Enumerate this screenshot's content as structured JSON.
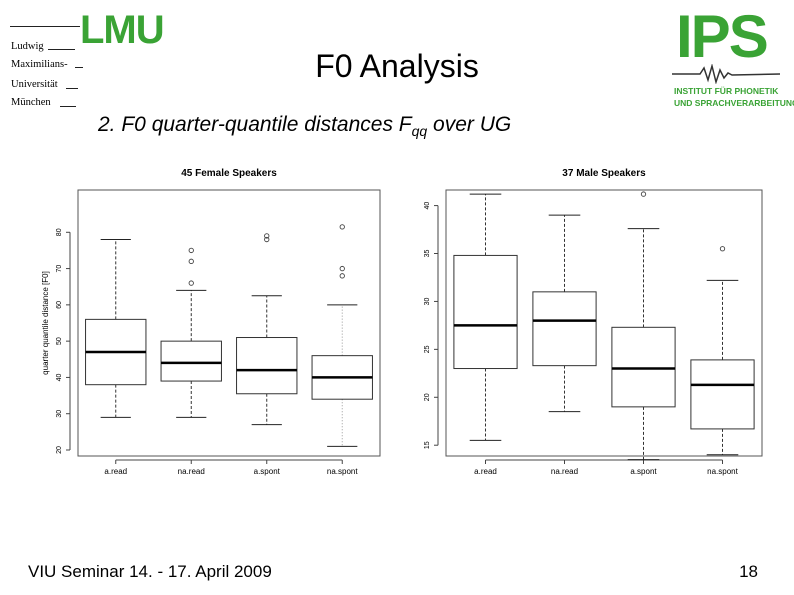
{
  "logo_lmu": {
    "mark": "LMU",
    "lines": [
      "Ludwig",
      "Maximilians-",
      "Universität",
      "München"
    ]
  },
  "logo_ips": {
    "mark": "IPS",
    "line1": "INSTITUT FÜR PHONETIK",
    "line2": "UND SPRACHVERARBEITUNG"
  },
  "slide": {
    "title": "F0 Analysis",
    "subtitle_main": "2. F0 quarter-quantile distances F",
    "subtitle_sub": "qq",
    "subtitle_tail": " over UG",
    "footer": "VIU Seminar 14. - 17. April 2009",
    "page_number": "18"
  },
  "chart_data": [
    {
      "type": "boxplot",
      "title": "45 Female Speakers",
      "ylabel": "quarter quantile distance [F0]",
      "xlabel": "",
      "ylim": [
        20,
        90
      ],
      "yticks": [
        20,
        30,
        40,
        50,
        60,
        70,
        80
      ],
      "grid": false,
      "categories": [
        "a.read",
        "na.read",
        "a.spont",
        "na.spont"
      ],
      "boxes": [
        {
          "whisker_low": 29,
          "q1": 38,
          "median": 47,
          "q3": 56,
          "whisker_high": 78,
          "outliers": [],
          "whisker_style": "dashed"
        },
        {
          "whisker_low": 29,
          "q1": 39,
          "median": 44,
          "q3": 50,
          "whisker_high": 64,
          "outliers": [
            66,
            72,
            75
          ],
          "whisker_style": "dashed"
        },
        {
          "whisker_low": 27,
          "q1": 35.5,
          "median": 42,
          "q3": 51,
          "whisker_high": 62.5,
          "outliers": [
            78,
            79
          ],
          "whisker_style": "dashed"
        },
        {
          "whisker_low": 21,
          "q1": 34,
          "median": 40,
          "q3": 46,
          "whisker_high": 60,
          "outliers": [
            68,
            70,
            81.5
          ],
          "whisker_style": "dotted"
        }
      ]
    },
    {
      "type": "boxplot",
      "title": "37 Male Speakers",
      "ylabel": "",
      "xlabel": "",
      "ylim": [
        14.5,
        41
      ],
      "yticks": [
        15,
        20,
        25,
        30,
        35,
        40
      ],
      "grid": false,
      "categories": [
        "a.read",
        "na.read",
        "a.spont",
        "na.spont"
      ],
      "boxes": [
        {
          "whisker_low": 15.5,
          "q1": 23,
          "median": 27.5,
          "q3": 34.8,
          "whisker_high": 41.2,
          "outliers": [],
          "whisker_style": "dashed"
        },
        {
          "whisker_low": 18.5,
          "q1": 23.3,
          "median": 28,
          "q3": 31,
          "whisker_high": 39,
          "outliers": [],
          "whisker_style": "dashed"
        },
        {
          "whisker_low": 13.5,
          "q1": 19,
          "median": 23,
          "q3": 27.3,
          "whisker_high": 37.6,
          "outliers": [
            41.2
          ],
          "whisker_style": "dashed"
        },
        {
          "whisker_low": 14,
          "q1": 16.7,
          "median": 21.3,
          "q3": 23.9,
          "whisker_high": 32.2,
          "outliers": [
            35.5
          ],
          "whisker_style": "dashed"
        }
      ]
    }
  ]
}
